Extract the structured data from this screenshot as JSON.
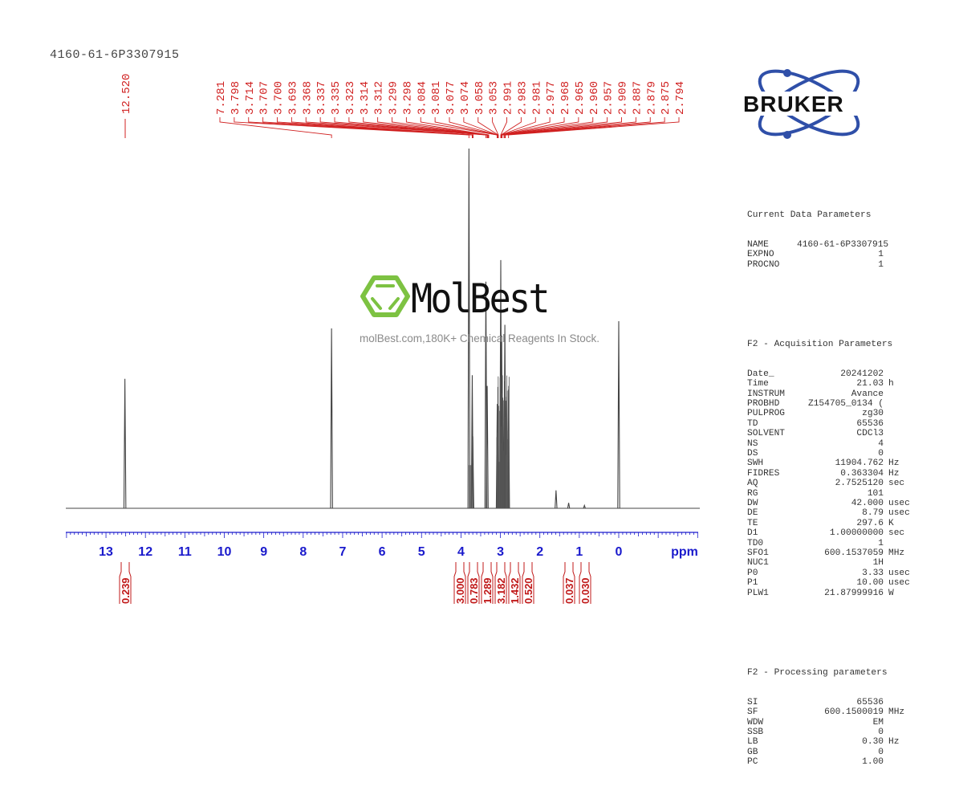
{
  "sample_title": "4160-61-6P3307915",
  "watermark": {
    "brand": "MolBest",
    "tagline": "molBest.com,180K+ Chemical Reagents In Stock.",
    "accent_color": "#7dc242"
  },
  "vendor_logo": {
    "text": "BRUKER",
    "orbit_color": "#2f4fa8"
  },
  "colors": {
    "axis": "#1a1acc",
    "peak_labels": "#d02020",
    "spectrum": "#444444",
    "integrals": "#c01818"
  },
  "parameters": {
    "current": {
      "title": "Current Data Parameters",
      "rows": [
        {
          "k": "NAME",
          "v": "4160-61-6P3307915",
          "u": ""
        },
        {
          "k": "EXPNO",
          "v": "1",
          "u": ""
        },
        {
          "k": "PROCNO",
          "v": "1",
          "u": ""
        }
      ]
    },
    "acquisition": {
      "title": "F2 - Acquisition Parameters",
      "rows": [
        {
          "k": "Date_",
          "v": "20241202",
          "u": ""
        },
        {
          "k": "Time",
          "v": "21.03",
          "u": "h"
        },
        {
          "k": "INSTRUM",
          "v": "Avance",
          "u": ""
        },
        {
          "k": "PROBHD",
          "v": "Z154705_0134 (",
          "u": ""
        },
        {
          "k": "PULPROG",
          "v": "zg30",
          "u": ""
        },
        {
          "k": "TD",
          "v": "65536",
          "u": ""
        },
        {
          "k": "SOLVENT",
          "v": "CDCl3",
          "u": ""
        },
        {
          "k": "NS",
          "v": "4",
          "u": ""
        },
        {
          "k": "DS",
          "v": "0",
          "u": ""
        },
        {
          "k": "SWH",
          "v": "11904.762",
          "u": "Hz"
        },
        {
          "k": "FIDRES",
          "v": "0.363304",
          "u": "Hz"
        },
        {
          "k": "AQ",
          "v": "2.7525120",
          "u": "sec"
        },
        {
          "k": "RG",
          "v": "101",
          "u": ""
        },
        {
          "k": "DW",
          "v": "42.000",
          "u": "usec"
        },
        {
          "k": "DE",
          "v": "8.79",
          "u": "usec"
        },
        {
          "k": "TE",
          "v": "297.6",
          "u": "K"
        },
        {
          "k": "D1",
          "v": "1.00000000",
          "u": "sec"
        },
        {
          "k": "TD0",
          "v": "1",
          "u": ""
        },
        {
          "k": "SFO1",
          "v": "600.1537059",
          "u": "MHz"
        },
        {
          "k": "NUC1",
          "v": "1H",
          "u": ""
        },
        {
          "k": "P0",
          "v": "3.33",
          "u": "usec"
        },
        {
          "k": "P1",
          "v": "10.00",
          "u": "usec"
        },
        {
          "k": "PLW1",
          "v": "21.87999916",
          "u": "W"
        }
      ]
    },
    "processing": {
      "title": "F2 - Processing parameters",
      "rows": [
        {
          "k": "SI",
          "v": "65536",
          "u": ""
        },
        {
          "k": "SF",
          "v": "600.1500019",
          "u": "MHz"
        },
        {
          "k": "WDW",
          "v": "EM",
          "u": ""
        },
        {
          "k": "SSB",
          "v": "0",
          "u": ""
        },
        {
          "k": "LB",
          "v": "0.30",
          "u": "Hz"
        },
        {
          "k": "GB",
          "v": "0",
          "u": ""
        },
        {
          "k": "PC",
          "v": "1.00",
          "u": ""
        }
      ]
    }
  },
  "chart_data": {
    "type": "line",
    "title": "4160-61-6P3307915",
    "xlabel": "ppm",
    "ylabel": "",
    "xlim": [
      14.0,
      -2.0
    ],
    "x_reversed": true,
    "x_ticks": [
      13,
      12,
      11,
      10,
      9,
      8,
      7,
      6,
      5,
      4,
      3,
      2,
      1,
      0
    ],
    "grid": false,
    "legend": "none",
    "peak_labels_ppm": [
      "12.520",
      "7.281",
      "3.798",
      "3.714",
      "3.707",
      "3.700",
      "3.693",
      "3.368",
      "3.337",
      "3.335",
      "3.323",
      "3.314",
      "3.312",
      "3.299",
      "3.298",
      "3.084",
      "3.081",
      "3.077",
      "3.074",
      "3.058",
      "3.053",
      "2.991",
      "2.983",
      "2.981",
      "2.977",
      "2.968",
      "2.965",
      "2.960",
      "2.957",
      "2.909",
      "2.887",
      "2.879",
      "2.875",
      "2.794"
    ],
    "integrals": [
      {
        "ppm": 12.52,
        "value": "0.239"
      },
      {
        "ppm": 3.8,
        "value": "3.000"
      },
      {
        "ppm": 3.7,
        "value": "0.783"
      },
      {
        "ppm": 3.34,
        "value": "1.289"
      },
      {
        "ppm": 3.08,
        "value": "3.182"
      },
      {
        "ppm": 2.97,
        "value": "1.432"
      },
      {
        "ppm": 2.88,
        "value": "0.520"
      },
      {
        "ppm": 1.28,
        "value": "0.037"
      },
      {
        "ppm": 0.88,
        "value": "0.030"
      }
    ],
    "peaks": [
      {
        "ppm": 12.52,
        "height": 0.36
      },
      {
        "ppm": 7.281,
        "height": 0.5
      },
      {
        "ppm": 3.798,
        "height": 1.0
      },
      {
        "ppm": 3.714,
        "height": 0.37
      },
      {
        "ppm": 3.7,
        "height": 0.2
      },
      {
        "ppm": 3.368,
        "height": 0.63
      },
      {
        "ppm": 3.335,
        "height": 0.34
      },
      {
        "ppm": 3.08,
        "height": 0.29
      },
      {
        "ppm": 3.06,
        "height": 0.25
      },
      {
        "ppm": 2.991,
        "height": 0.69
      },
      {
        "ppm": 2.968,
        "height": 0.48
      },
      {
        "ppm": 2.909,
        "height": 0.3
      },
      {
        "ppm": 2.887,
        "height": 0.51
      },
      {
        "ppm": 2.875,
        "height": 0.31
      },
      {
        "ppm": 2.794,
        "height": 0.33
      },
      {
        "ppm": 1.59,
        "height": 0.05
      },
      {
        "ppm": 1.27,
        "height": 0.015
      },
      {
        "ppm": 0.87,
        "height": 0.008
      },
      {
        "ppm": 0.0,
        "height": 0.52
      }
    ]
  }
}
